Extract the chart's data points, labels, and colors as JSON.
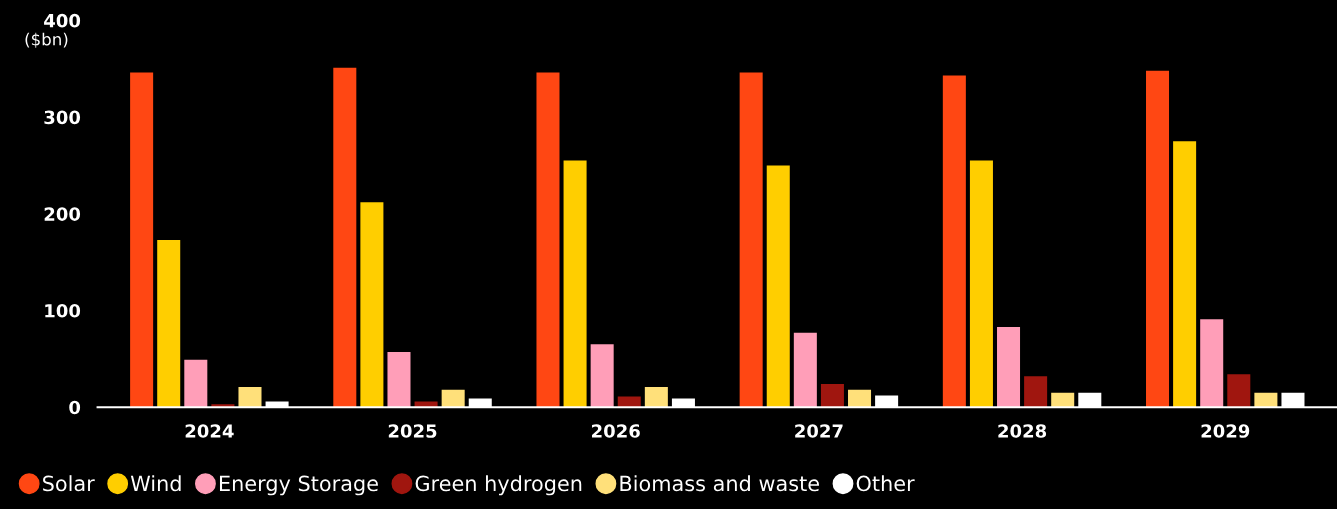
{
  "chart_data": {
    "type": "bar",
    "ylabel": "($bn)",
    "categories": [
      "2024",
      "2025",
      "2026",
      "2027",
      "2028",
      "2029"
    ],
    "series": [
      {
        "name": "Solar",
        "color": "#ff4713",
        "values": [
          346,
          351,
          346,
          346,
          343,
          348
        ]
      },
      {
        "name": "Wind",
        "color": "#ffce00",
        "values": [
          173,
          212,
          255,
          250,
          255,
          275
        ]
      },
      {
        "name": "Energy Storage",
        "color": "#ff9eb8",
        "values": [
          49,
          57,
          65,
          77,
          83,
          91
        ]
      },
      {
        "name": "Green hydrogen",
        "color": "#a0160f",
        "values": [
          3,
          6,
          11,
          24,
          32,
          34
        ]
      },
      {
        "name": "Biomass and waste",
        "color": "#ffe07a",
        "values": [
          21,
          18,
          21,
          18,
          15,
          15
        ]
      },
      {
        "name": "Other",
        "color": "#ffffff",
        "values": [
          6,
          9,
          9,
          12,
          15,
          15
        ]
      }
    ],
    "ylim": [
      0,
      400
    ],
    "yticks": [
      0,
      100,
      200,
      300,
      400
    ],
    "grid": false,
    "legend": "bottom left",
    "marker": "circle"
  }
}
